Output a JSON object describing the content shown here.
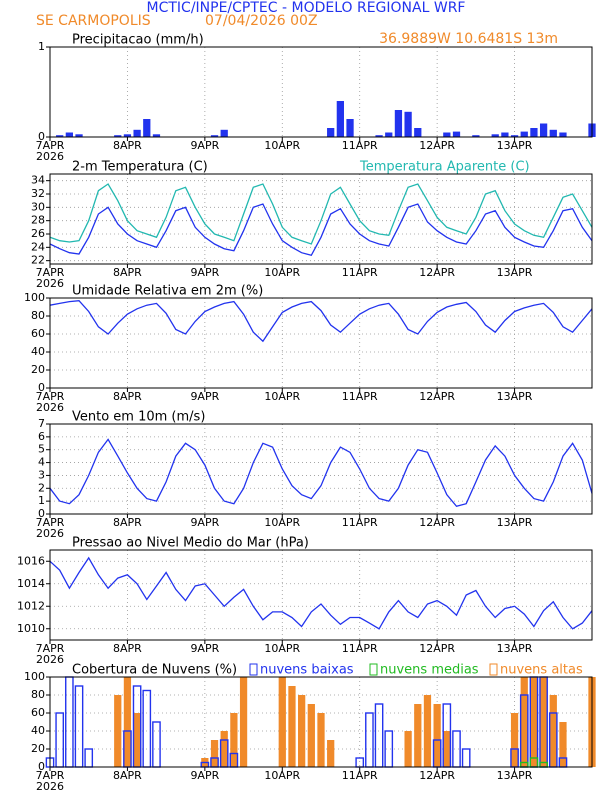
{
  "header": {
    "title": "MCTIC/INPE/CPTEC - MODELO REGIONAL WRF",
    "location": "SE CARMOPOLIS",
    "run": "07/04/2026 00Z",
    "coords": "36.9889W 10.6481S 13m"
  },
  "chart_data": [
    {
      "type": "bar",
      "title": "Precipitacao (mm/h)",
      "xlim": [
        0,
        168
      ],
      "x_year": "2026",
      "xticks": [
        {
          "value": 0,
          "label": "7APR"
        },
        {
          "value": 24,
          "label": "8APR"
        },
        {
          "value": 48,
          "label": "9APR"
        },
        {
          "value": 72,
          "label": "10APR"
        },
        {
          "value": 96,
          "label": "11APR"
        },
        {
          "value": 120,
          "label": "12APR"
        },
        {
          "value": 144,
          "label": "13APR"
        }
      ],
      "ylim": [
        0,
        1
      ],
      "yticks": [
        0,
        1
      ],
      "grid": true,
      "x": [
        0,
        3,
        6,
        9,
        12,
        15,
        18,
        21,
        24,
        27,
        30,
        33,
        36,
        39,
        42,
        45,
        48,
        51,
        54,
        57,
        60,
        63,
        66,
        69,
        72,
        75,
        78,
        81,
        84,
        87,
        90,
        93,
        96,
        99,
        102,
        105,
        108,
        111,
        114,
        117,
        120,
        123,
        126,
        129,
        132,
        135,
        138,
        141,
        144,
        147,
        150,
        153,
        156,
        159,
        162,
        165,
        168
      ],
      "series": [
        {
          "color": "#2233ee",
          "style": "filled",
          "values": [
            0,
            0.02,
            0.05,
            0.03,
            0,
            0,
            0,
            0.02,
            0.03,
            0.08,
            0.2,
            0.03,
            0,
            0,
            0,
            0,
            0,
            0.02,
            0.08,
            0,
            0,
            0,
            0,
            0,
            0,
            0,
            0,
            0,
            0,
            0.1,
            0.4,
            0.2,
            0,
            0,
            0.02,
            0.05,
            0.3,
            0.28,
            0.1,
            0,
            0,
            0.05,
            0.06,
            0,
            0.02,
            0,
            0.03,
            0.05,
            0.02,
            0.06,
            0.1,
            0.15,
            0.08,
            0.05,
            0,
            0,
            0.15
          ]
        }
      ]
    },
    {
      "type": "line",
      "title": "2-m Temperatura (C)",
      "xlim": [
        0,
        168
      ],
      "x_year": "2026",
      "xticks": [
        {
          "value": 0,
          "label": "7APR"
        },
        {
          "value": 24,
          "label": "8APR"
        },
        {
          "value": 48,
          "label": "9APR"
        },
        {
          "value": 72,
          "label": "10APR"
        },
        {
          "value": 96,
          "label": "11APR"
        },
        {
          "value": 120,
          "label": "12APR"
        },
        {
          "value": 144,
          "label": "13APR"
        }
      ],
      "ylim": [
        21.5,
        35
      ],
      "yticks": [
        22,
        24,
        26,
        28,
        30,
        32,
        34
      ],
      "grid": true,
      "x": [
        0,
        3,
        6,
        9,
        12,
        15,
        18,
        21,
        24,
        27,
        30,
        33,
        36,
        39,
        42,
        45,
        48,
        51,
        54,
        57,
        60,
        63,
        66,
        69,
        72,
        75,
        78,
        81,
        84,
        87,
        90,
        93,
        96,
        99,
        102,
        105,
        108,
        111,
        114,
        117,
        120,
        123,
        126,
        129,
        132,
        135,
        138,
        141,
        144,
        147,
        150,
        153,
        156,
        159,
        162,
        165,
        168
      ],
      "series": [
        {
          "color": "#2233ee",
          "values": [
            24.5,
            23.8,
            23.2,
            23.0,
            25.5,
            29.0,
            30.0,
            27.5,
            26.0,
            25.0,
            24.5,
            24.0,
            26.5,
            29.5,
            30.0,
            27.0,
            25.5,
            24.5,
            23.8,
            23.5,
            26.5,
            30.0,
            30.5,
            27.5,
            25.0,
            24.0,
            23.2,
            22.8,
            25.5,
            29.0,
            29.8,
            27.5,
            26.0,
            25.0,
            24.5,
            24.2,
            27.0,
            30.0,
            30.5,
            27.8,
            26.5,
            25.5,
            24.8,
            24.5,
            26.5,
            29.0,
            29.5,
            27.0,
            25.5,
            24.8,
            24.2,
            24.0,
            26.5,
            29.5,
            29.8,
            27.0,
            25.0
          ]
        },
        {
          "name": "Temperatura Aparente (C)",
          "color": "#22b8b0",
          "values": [
            25.5,
            25.0,
            24.8,
            25.0,
            28.0,
            32.5,
            33.5,
            31.0,
            28.0,
            26.5,
            26.0,
            25.5,
            28.5,
            32.5,
            33.0,
            30.0,
            27.5,
            26.0,
            25.5,
            25.0,
            29.0,
            33.0,
            33.5,
            30.5,
            27.0,
            25.5,
            25.0,
            24.5,
            28.0,
            32.0,
            33.0,
            30.5,
            28.0,
            26.5,
            26.0,
            25.8,
            29.5,
            33.0,
            33.5,
            31.0,
            28.5,
            27.0,
            26.5,
            26.0,
            28.5,
            32.0,
            32.5,
            29.5,
            27.5,
            26.5,
            25.8,
            25.5,
            28.5,
            31.5,
            32.0,
            29.5,
            27.0
          ]
        }
      ]
    },
    {
      "type": "line",
      "title": "Umidade Relativa em 2m (%)",
      "xlim": [
        0,
        168
      ],
      "x_year": "2026",
      "xticks": [
        {
          "value": 0,
          "label": "7APR"
        },
        {
          "value": 24,
          "label": "8APR"
        },
        {
          "value": 48,
          "label": "9APR"
        },
        {
          "value": 72,
          "label": "10APR"
        },
        {
          "value": 96,
          "label": "11APR"
        },
        {
          "value": 120,
          "label": "12APR"
        },
        {
          "value": 144,
          "label": "13APR"
        }
      ],
      "ylim": [
        0,
        100
      ],
      "yticks": [
        0,
        20,
        40,
        60,
        80,
        100
      ],
      "grid": true,
      "x": [
        0,
        3,
        6,
        9,
        12,
        15,
        18,
        21,
        24,
        27,
        30,
        33,
        36,
        39,
        42,
        45,
        48,
        51,
        54,
        57,
        60,
        63,
        66,
        69,
        72,
        75,
        78,
        81,
        84,
        87,
        90,
        93,
        96,
        99,
        102,
        105,
        108,
        111,
        114,
        117,
        120,
        123,
        126,
        129,
        132,
        135,
        138,
        141,
        144,
        147,
        150,
        153,
        156,
        159,
        162,
        165,
        168
      ],
      "series": [
        {
          "color": "#2233ee",
          "values": [
            92,
            94,
            96,
            97,
            85,
            68,
            60,
            72,
            82,
            88,
            92,
            94,
            83,
            65,
            60,
            74,
            85,
            90,
            94,
            96,
            82,
            62,
            52,
            68,
            84,
            90,
            94,
            96,
            86,
            70,
            62,
            72,
            82,
            88,
            92,
            94,
            82,
            65,
            60,
            74,
            84,
            90,
            93,
            95,
            85,
            70,
            62,
            75,
            85,
            89,
            92,
            94,
            84,
            68,
            62,
            75,
            88
          ]
        }
      ]
    },
    {
      "type": "line",
      "title": "Vento em 10m (m/s)",
      "xlim": [
        0,
        168
      ],
      "x_year": "2026",
      "xticks": [
        {
          "value": 0,
          "label": "7APR"
        },
        {
          "value": 24,
          "label": "8APR"
        },
        {
          "value": 48,
          "label": "9APR"
        },
        {
          "value": 72,
          "label": "10APR"
        },
        {
          "value": 96,
          "label": "11APR"
        },
        {
          "value": 120,
          "label": "12APR"
        },
        {
          "value": 144,
          "label": "13APR"
        }
      ],
      "ylim": [
        0,
        7
      ],
      "yticks": [
        0,
        1,
        2,
        3,
        4,
        5,
        6,
        7
      ],
      "grid": true,
      "x": [
        0,
        3,
        6,
        9,
        12,
        15,
        18,
        21,
        24,
        27,
        30,
        33,
        36,
        39,
        42,
        45,
        48,
        51,
        54,
        57,
        60,
        63,
        66,
        69,
        72,
        75,
        78,
        81,
        84,
        87,
        90,
        93,
        96,
        99,
        102,
        105,
        108,
        111,
        114,
        117,
        120,
        123,
        126,
        129,
        132,
        135,
        138,
        141,
        144,
        147,
        150,
        153,
        156,
        159,
        162,
        165,
        168
      ],
      "series": [
        {
          "color": "#2233ee",
          "values": [
            2.0,
            1.0,
            0.8,
            1.5,
            3.0,
            4.8,
            5.8,
            4.5,
            3.2,
            2.0,
            1.2,
            1.0,
            2.5,
            4.5,
            5.5,
            5.0,
            3.8,
            2.0,
            1.0,
            0.8,
            2.0,
            4.0,
            5.5,
            5.2,
            3.5,
            2.2,
            1.5,
            1.2,
            2.2,
            4.0,
            5.2,
            4.8,
            3.5,
            2.0,
            1.2,
            1.0,
            2.0,
            3.8,
            5.0,
            4.8,
            3.2,
            1.5,
            0.6,
            0.8,
            2.5,
            4.2,
            5.3,
            4.5,
            3.0,
            2.0,
            1.2,
            1.0,
            2.5,
            4.5,
            5.5,
            4.2,
            1.6
          ]
        }
      ]
    },
    {
      "type": "line",
      "title": "Pressao ao Nivel Medio do Mar (hPa)",
      "xlim": [
        0,
        168
      ],
      "x_year": "2026",
      "xticks": [
        {
          "value": 0,
          "label": "7APR"
        },
        {
          "value": 24,
          "label": "8APR"
        },
        {
          "value": 48,
          "label": "9APR"
        },
        {
          "value": 72,
          "label": "10APR"
        },
        {
          "value": 96,
          "label": "11APR"
        },
        {
          "value": 120,
          "label": "12APR"
        },
        {
          "value": 144,
          "label": "13APR"
        }
      ],
      "ylim": [
        1009,
        1017
      ],
      "yticks": [
        1010,
        1012,
        1014,
        1016
      ],
      "grid": true,
      "x": [
        0,
        3,
        6,
        9,
        12,
        15,
        18,
        21,
        24,
        27,
        30,
        33,
        36,
        39,
        42,
        45,
        48,
        51,
        54,
        57,
        60,
        63,
        66,
        69,
        72,
        75,
        78,
        81,
        84,
        87,
        90,
        93,
        96,
        99,
        102,
        105,
        108,
        111,
        114,
        117,
        120,
        123,
        126,
        129,
        132,
        135,
        138,
        141,
        144,
        147,
        150,
        153,
        156,
        159,
        162,
        165,
        168
      ],
      "series": [
        {
          "color": "#2233ee",
          "values": [
            1016.0,
            1015.2,
            1013.6,
            1015.0,
            1016.3,
            1014.8,
            1013.6,
            1014.5,
            1014.8,
            1014.0,
            1012.6,
            1013.8,
            1015.0,
            1013.5,
            1012.5,
            1013.8,
            1014.0,
            1013.0,
            1012.0,
            1012.8,
            1013.5,
            1012.0,
            1010.8,
            1011.5,
            1011.5,
            1011.0,
            1010.2,
            1011.5,
            1012.2,
            1011.2,
            1010.4,
            1011.0,
            1011.0,
            1010.5,
            1010.0,
            1011.5,
            1012.5,
            1011.5,
            1011.0,
            1012.2,
            1012.5,
            1012.0,
            1011.2,
            1013.0,
            1013.4,
            1012.0,
            1011.0,
            1011.8,
            1012.0,
            1011.3,
            1010.2,
            1011.6,
            1012.4,
            1011.0,
            1010.0,
            1010.5,
            1011.6
          ]
        }
      ]
    },
    {
      "type": "bar",
      "title": "Cobertura de Nuvens (%)",
      "xlim": [
        0,
        168
      ],
      "x_year": "2026",
      "xticks": [
        {
          "value": 0,
          "label": "7APR"
        },
        {
          "value": 24,
          "label": "8APR"
        },
        {
          "value": 48,
          "label": "9APR"
        },
        {
          "value": 72,
          "label": "10APR"
        },
        {
          "value": 96,
          "label": "11APR"
        },
        {
          "value": 120,
          "label": "12APR"
        },
        {
          "value": 144,
          "label": "13APR"
        }
      ],
      "ylim": [
        0,
        100
      ],
      "yticks": [
        0,
        20,
        40,
        60,
        80,
        100
      ],
      "grid": true,
      "x": [
        0,
        3,
        6,
        9,
        12,
        15,
        18,
        21,
        24,
        27,
        30,
        33,
        36,
        39,
        42,
        45,
        48,
        51,
        54,
        57,
        60,
        63,
        66,
        69,
        72,
        75,
        78,
        81,
        84,
        87,
        90,
        93,
        96,
        99,
        102,
        105,
        108,
        111,
        114,
        117,
        120,
        123,
        126,
        129,
        132,
        135,
        138,
        141,
        144,
        147,
        150,
        153,
        156,
        159,
        162,
        165,
        168
      ],
      "series": [
        {
          "name": "nuvens baixas",
          "color": "#2233ee",
          "style": "outline",
          "values": [
            10,
            60,
            100,
            90,
            20,
            0,
            0,
            0,
            40,
            90,
            85,
            50,
            0,
            0,
            0,
            0,
            5,
            10,
            30,
            15,
            0,
            0,
            0,
            0,
            0,
            0,
            0,
            0,
            0,
            0,
            0,
            0,
            10,
            60,
            70,
            40,
            0,
            0,
            0,
            0,
            30,
            70,
            40,
            20,
            0,
            0,
            0,
            0,
            20,
            80,
            100,
            100,
            60,
            10,
            0,
            0,
            0
          ]
        },
        {
          "name": "nuvens medias",
          "color": "#22bb22",
          "style": "outline",
          "values": [
            0,
            0,
            0,
            0,
            0,
            0,
            0,
            0,
            0,
            0,
            0,
            0,
            0,
            0,
            0,
            0,
            0,
            0,
            0,
            0,
            0,
            0,
            0,
            0,
            0,
            0,
            0,
            0,
            0,
            0,
            0,
            0,
            0,
            0,
            0,
            0,
            0,
            0,
            0,
            0,
            0,
            0,
            0,
            0,
            0,
            0,
            0,
            0,
            0,
            5,
            10,
            5,
            0,
            0,
            0,
            0,
            0
          ]
        },
        {
          "name": "nuvens altas",
          "color": "#f08a2a",
          "style": "filled",
          "values": [
            0,
            0,
            0,
            0,
            0,
            0,
            0,
            80,
            100,
            60,
            0,
            0,
            0,
            0,
            0,
            0,
            10,
            30,
            40,
            60,
            100,
            0,
            0,
            0,
            100,
            90,
            80,
            70,
            60,
            30,
            0,
            0,
            0,
            0,
            0,
            0,
            0,
            40,
            70,
            80,
            70,
            40,
            0,
            0,
            0,
            0,
            0,
            0,
            60,
            100,
            100,
            100,
            80,
            50,
            0,
            0,
            100
          ]
        }
      ]
    }
  ]
}
